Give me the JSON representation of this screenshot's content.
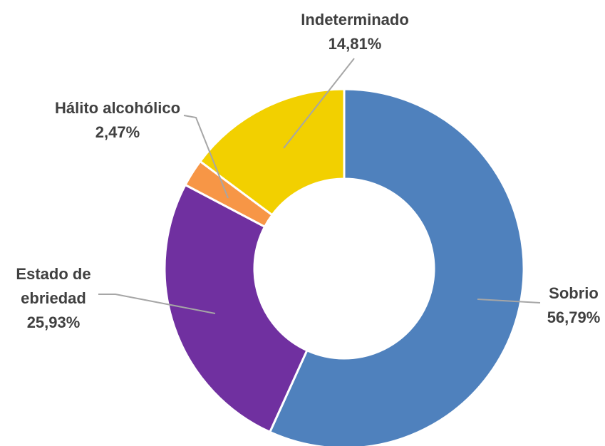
{
  "chart_data": {
    "type": "donut",
    "categories": [
      "Sobrio",
      "Estado de ebriedad",
      "Hálito alcohólico",
      "Indeterminado"
    ],
    "values": [
      56.79,
      25.93,
      2.47,
      14.81
    ],
    "value_labels": [
      "56,79%",
      "25,93%",
      "2,47%",
      "14,81%"
    ],
    "colors": [
      "#4f81bd",
      "#7030a0",
      "#f79646",
      "#f2d000"
    ]
  }
}
